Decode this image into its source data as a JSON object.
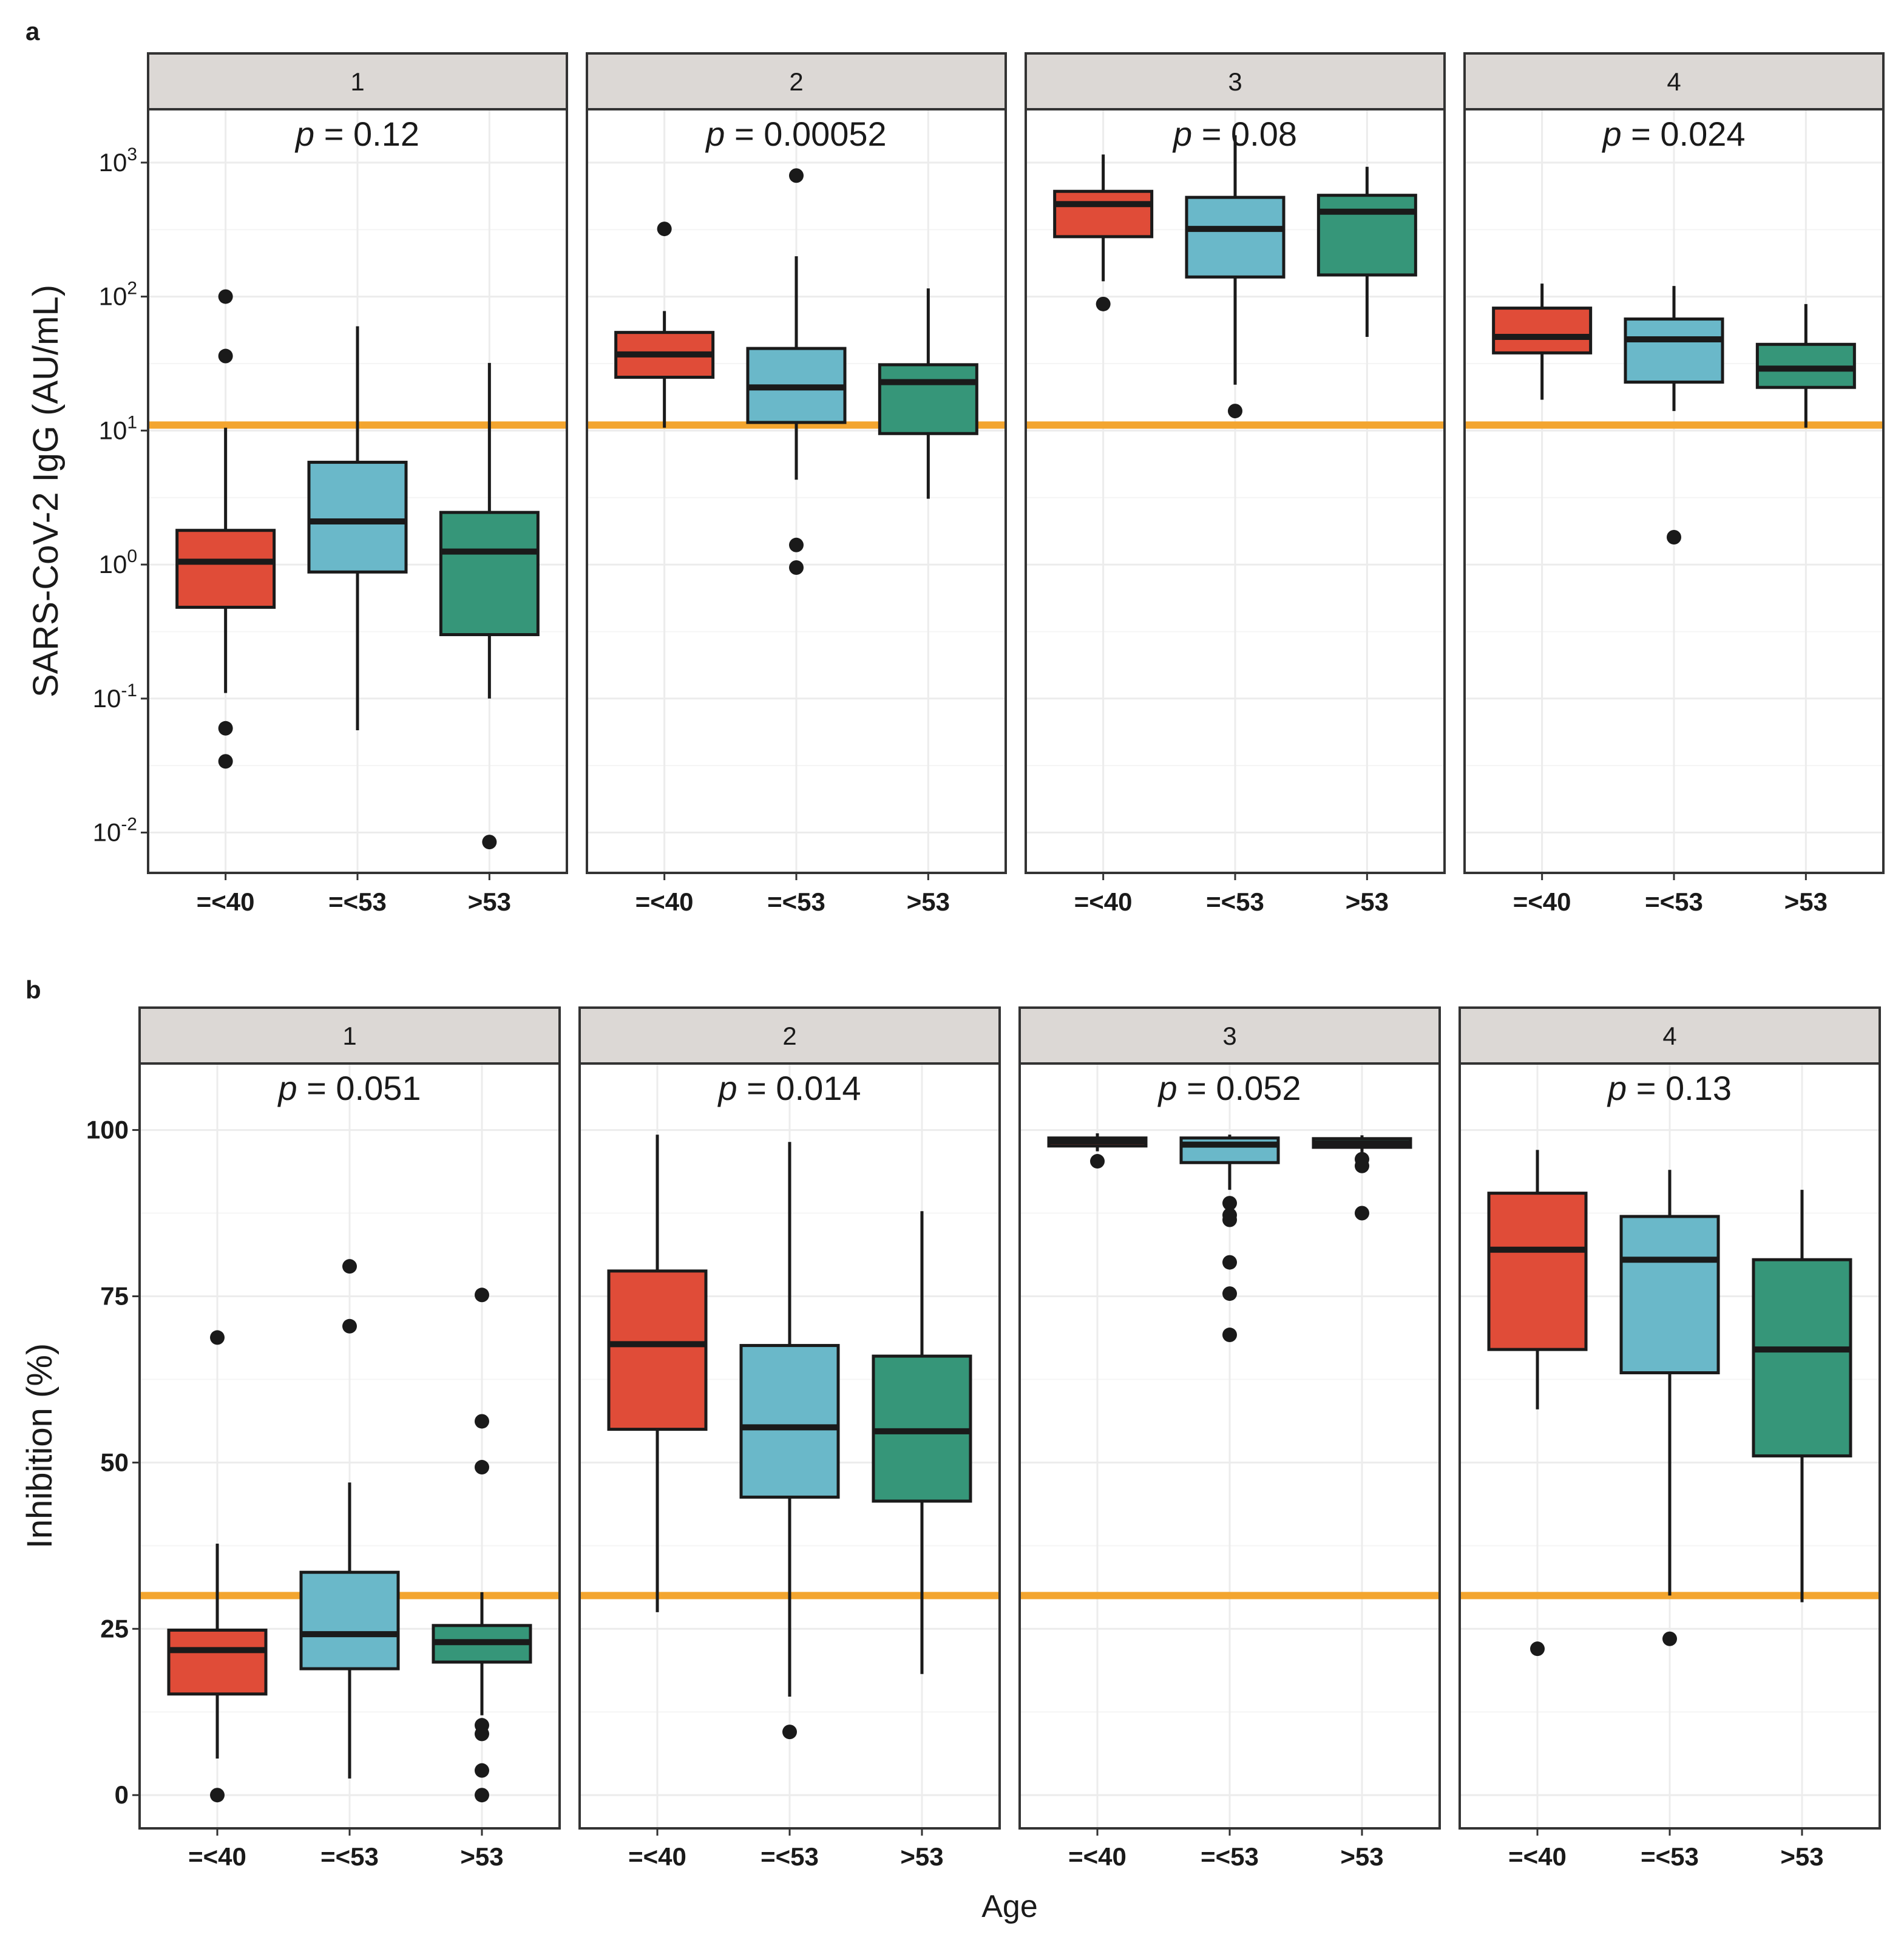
{
  "chart_data": [
    {
      "panel_label": "a",
      "type": "boxplot",
      "scale": "log10",
      "ylabel": "SARS-CoV-2 IgG (AU/mL)",
      "ylim": [
        0.005,
        2500
      ],
      "y_tick_values": [
        0.01,
        0.1,
        1,
        10,
        100,
        1000
      ],
      "y_tick_labels": [
        {
          "base": "10",
          "exp": "-2"
        },
        {
          "base": "10",
          "exp": "-1"
        },
        {
          "base": "10",
          "exp": "0"
        },
        {
          "base": "10",
          "exp": "1"
        },
        {
          "base": "10",
          "exp": "2"
        },
        {
          "base": "10",
          "exp": "3"
        }
      ],
      "threshold": 11,
      "categories": [
        "=<40",
        "=<53",
        ">53"
      ],
      "facets": [
        {
          "strip": "1",
          "p_label": "p",
          "p_value": " = 0.12",
          "boxes": [
            {
              "q1": 0.48,
              "median": 1.05,
              "q3": 1.8,
              "whisker_low": 0.11,
              "whisker_high": 10.5,
              "outliers": [
                100,
                36,
                0.06,
                0.034
              ]
            },
            {
              "q1": 0.88,
              "median": 2.1,
              "q3": 5.8,
              "whisker_low": 0.058,
              "whisker_high": 60,
              "outliers": []
            },
            {
              "q1": 0.3,
              "median": 1.25,
              "q3": 2.45,
              "whisker_low": 0.1,
              "whisker_high": 32,
              "outliers": [
                0.0085
              ]
            }
          ]
        },
        {
          "strip": "2",
          "p_label": "p",
          "p_value": " = 0.00052",
          "boxes": [
            {
              "q1": 25,
              "median": 37,
              "q3": 54,
              "whisker_low": 10.5,
              "whisker_high": 78,
              "outliers": [
                320
              ]
            },
            {
              "q1": 11.5,
              "median": 21,
              "q3": 41,
              "whisker_low": 4.3,
              "whisker_high": 200,
              "outliers": [
                800,
                1.4,
                0.95
              ]
            },
            {
              "q1": 9.5,
              "median": 23,
              "q3": 31,
              "whisker_low": 3.1,
              "whisker_high": 115,
              "outliers": []
            }
          ]
        },
        {
          "strip": "3",
          "p_label": "p",
          "p_value": " = 0.08",
          "boxes": [
            {
              "q1": 280,
              "median": 490,
              "q3": 610,
              "whisker_low": 130,
              "whisker_high": 1150,
              "outliers": [
                88
              ]
            },
            {
              "q1": 140,
              "median": 320,
              "q3": 550,
              "whisker_low": 22,
              "whisker_high": 1600,
              "outliers": [
                14
              ]
            },
            {
              "q1": 145,
              "median": 430,
              "q3": 570,
              "whisker_low": 50,
              "whisker_high": 930,
              "outliers": []
            }
          ]
        },
        {
          "strip": "4",
          "p_label": "p",
          "p_value": " = 0.024",
          "boxes": [
            {
              "q1": 38,
              "median": 50,
              "q3": 82,
              "whisker_low": 17,
              "whisker_high": 125,
              "outliers": []
            },
            {
              "q1": 23,
              "median": 48,
              "q3": 68,
              "whisker_low": 14,
              "whisker_high": 120,
              "outliers": [
                1.6
              ]
            },
            {
              "q1": 21,
              "median": 29,
              "q3": 44,
              "whisker_low": 10.5,
              "whisker_high": 88,
              "outliers": []
            }
          ]
        }
      ]
    },
    {
      "panel_label": "b",
      "type": "boxplot",
      "scale": "linear",
      "ylabel": "Inhibition (%)",
      "xlabel": "Age",
      "ylim": [
        -5,
        110
      ],
      "y_tick_values": [
        0,
        25,
        50,
        75,
        100
      ],
      "y_tick_labels": [
        "0",
        "25",
        "50",
        "75",
        "100"
      ],
      "threshold": 30,
      "categories": [
        "=<40",
        "=<53",
        ">53"
      ],
      "facets": [
        {
          "strip": "1",
          "p_label": "p",
          "p_value": " = 0.051",
          "boxes": [
            {
              "q1": 15.2,
              "median": 21.8,
              "q3": 24.8,
              "whisker_low": 5.5,
              "whisker_high": 37.8,
              "outliers": [
                68.8,
                0
              ]
            },
            {
              "q1": 19,
              "median": 24.2,
              "q3": 33.5,
              "whisker_low": 2.5,
              "whisker_high": 47,
              "outliers": [
                79.5,
                70.5
              ]
            },
            {
              "q1": 20,
              "median": 23,
              "q3": 25.5,
              "whisker_low": 12,
              "whisker_high": 30.5,
              "outliers": [
                75.2,
                56.2,
                49.3,
                10.5,
                9.2,
                3.7,
                0
              ]
            }
          ]
        },
        {
          "strip": "2",
          "p_label": "p",
          "p_value": " = 0.014",
          "boxes": [
            {
              "q1": 55,
              "median": 67.8,
              "q3": 78.8,
              "whisker_low": 27.5,
              "whisker_high": 99.3,
              "outliers": []
            },
            {
              "q1": 44.8,
              "median": 55.3,
              "q3": 67.6,
              "whisker_low": 14.8,
              "whisker_high": 98.2,
              "outliers": [
                9.5
              ]
            },
            {
              "q1": 44.2,
              "median": 54.7,
              "q3": 66,
              "whisker_low": 18.2,
              "whisker_high": 87.8,
              "outliers": []
            }
          ]
        },
        {
          "strip": "3",
          "p_label": "p",
          "p_value": " = 0.052",
          "boxes": [
            {
              "q1": 97.6,
              "median": 98.3,
              "q3": 98.8,
              "whisker_low": 96.8,
              "whisker_high": 99.5,
              "outliers": [
                95.3
              ]
            },
            {
              "q1": 95.1,
              "median": 97.8,
              "q3": 98.8,
              "whisker_low": 91,
              "whisker_high": 99.3,
              "outliers": [
                89,
                87.2,
                86.5,
                80.1,
                75.4,
                69.2
              ]
            },
            {
              "q1": 97.4,
              "median": 98,
              "q3": 98.7,
              "whisker_low": 96.2,
              "whisker_high": 99.2,
              "outliers": [
                95.6,
                94.6,
                87.5
              ]
            }
          ]
        },
        {
          "strip": "4",
          "p_label": "p",
          "p_value": " = 0.13",
          "boxes": [
            {
              "q1": 67,
              "median": 82,
              "q3": 90.5,
              "whisker_low": 58,
              "whisker_high": 97,
              "outliers": [
                22
              ]
            },
            {
              "q1": 63.5,
              "median": 80.5,
              "q3": 87,
              "whisker_low": 30,
              "whisker_high": 94,
              "outliers": [
                23.5
              ]
            },
            {
              "q1": 51,
              "median": 67,
              "q3": 80.5,
              "whisker_low": 29,
              "whisker_high": 91,
              "outliers": []
            }
          ]
        }
      ]
    }
  ],
  "colors": {
    "group_fill": [
      "#e04c38",
      "#6ab8c9",
      "#369679"
    ],
    "threshold": "#f3a52f",
    "strip_fill": "#dcd8d5",
    "strip_border": "#333333",
    "panel_border": "#333333",
    "grid_major": "#ececec",
    "grid_minor": "#f5f5f5",
    "ink": "#1a1a1a"
  }
}
